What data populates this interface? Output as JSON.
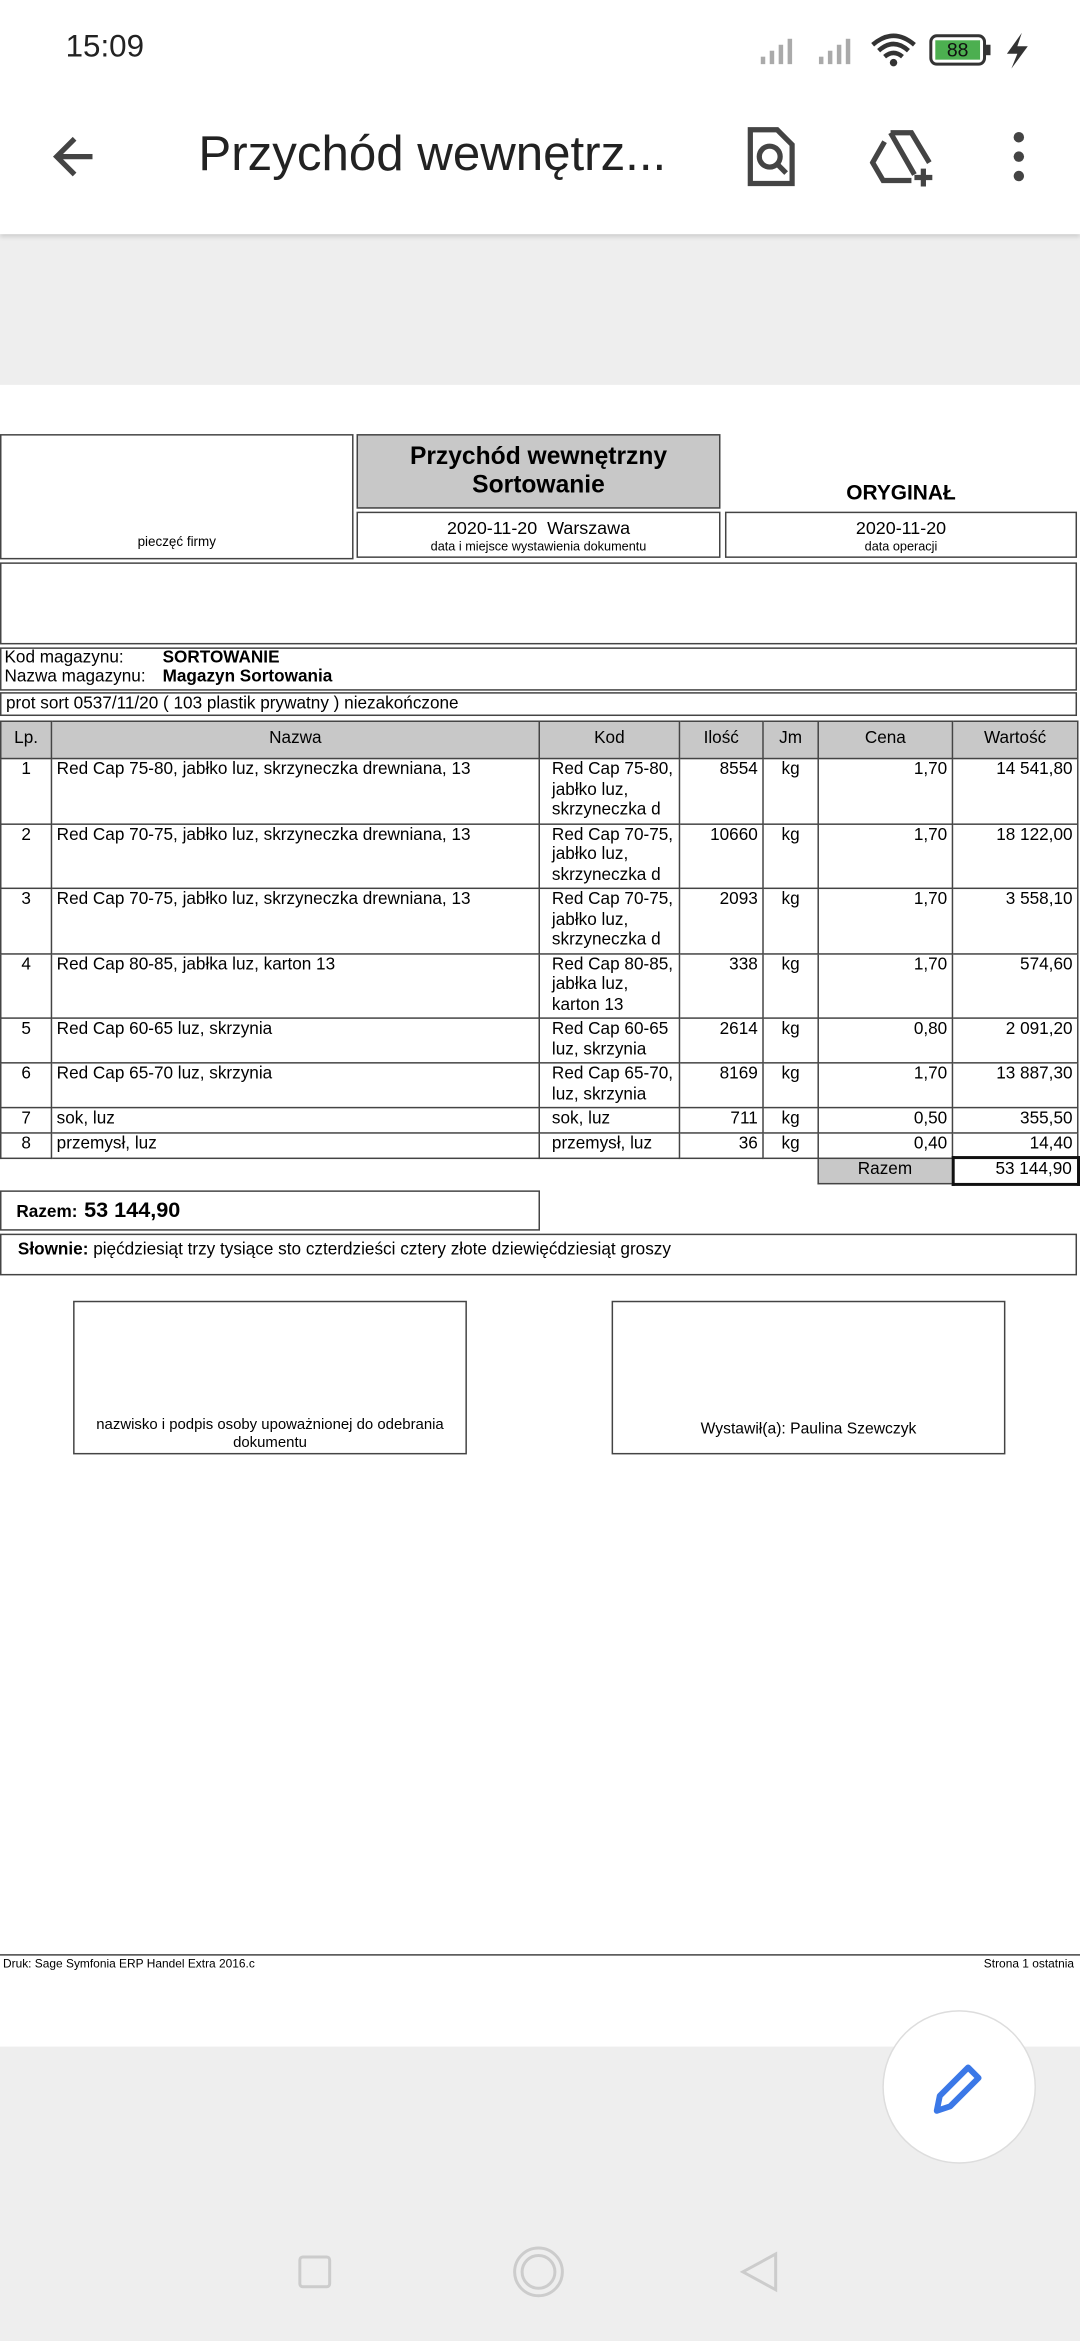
{
  "status_bar": {
    "time": "15:09",
    "battery": "88"
  },
  "app_bar": {
    "title": "Przychód wewnętrz..."
  },
  "document": {
    "stamp_caption": "pieczęć firmy",
    "title_line1": "Przychód wewnętrzny",
    "title_line2": "Sortowanie",
    "copy_label": "ORYGINAŁ",
    "issue_date_place": "2020-11-20  Warszawa",
    "issue_caption": "data i miejsce wystawienia dokumentu",
    "operation_date": "2020-11-20",
    "operation_caption": "data operacji",
    "warehouse_code_label": "Kod magazynu:",
    "warehouse_code": "SORTOWANIE",
    "warehouse_name_label": "Nazwa magazynu:",
    "warehouse_name": "Magazyn Sortowania",
    "note": "prot sort 0537/11/20 ( 103 plastik prywatny ) niezakończone",
    "table": {
      "headers": [
        "Lp.",
        "Nazwa",
        "Kod",
        "Ilość",
        "Jm",
        "Cena",
        "Wartość"
      ],
      "rows": [
        [
          "1",
          "Red Cap 75-80, jabłko luz, skrzyneczka drewniana, 13",
          "Red Cap 75-80, jabłko luz, skrzyneczka d",
          "8554",
          "kg",
          "1,70",
          "14 541,80"
        ],
        [
          "2",
          "Red Cap 70-75, jabłko luz, skrzyneczka drewniana, 13",
          "Red Cap 70-75, jabłko luz, skrzyneczka d",
          "10660",
          "kg",
          "1,70",
          "18 122,00"
        ],
        [
          "3",
          "Red Cap 70-75, jabłko luz, skrzyneczka drewniana, 13",
          "Red Cap 70-75, jabłko luz, skrzyneczka d",
          "2093",
          "kg",
          "1,70",
          "3 558,10"
        ],
        [
          "4",
          "Red Cap 80-85, jabłka luz, karton 13",
          "Red Cap 80-85, jabłka luz, karton 13",
          "338",
          "kg",
          "1,70",
          "574,60"
        ],
        [
          "5",
          "Red Cap 60-65 luz, skrzynia",
          "Red Cap 60-65 luz, skrzynia",
          "2614",
          "kg",
          "0,80",
          "2 091,20"
        ],
        [
          "6",
          "Red Cap 65-70 luz, skrzynia",
          "Red Cap 65-70, luz, skrzynia",
          "8169",
          "kg",
          "1,70",
          "13 887,30"
        ],
        [
          "7",
          "sok, luz",
          "sok, luz",
          "711",
          "kg",
          "0,50",
          "355,50"
        ],
        [
          "8",
          "przemysł, luz",
          "przemysł, luz",
          "36",
          "kg",
          "0,40",
          "14,40"
        ]
      ],
      "total_label": "Razem",
      "total": "53 144,90"
    },
    "sum_label": "Razem:",
    "sum_value": "53 144,90",
    "words_label": "Słownie:",
    "words_text": "pięćdziesiąt trzy tysiące sto czterdzieści cztery złote dziewięćdziesiąt groszy",
    "signature_receiver": "nazwisko i podpis osoby upoważnionej do odebrania dokumentu",
    "signature_issuer": "Wystawił(a): Paulina Szewczyk",
    "footer_left": "Druk: Sage Symfonia ERP Handel Extra 2016.c",
    "footer_right": "Strona 1 ostatnia"
  }
}
